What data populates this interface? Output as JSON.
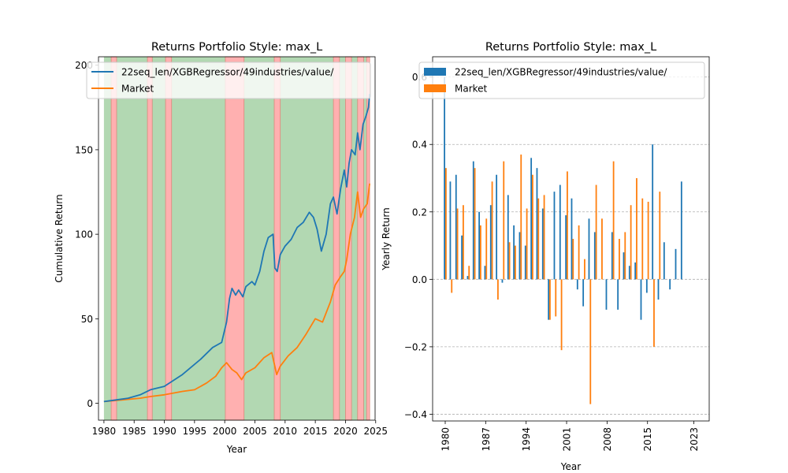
{
  "colors": {
    "strategy": "#1f77b4",
    "market": "#ff7f0e",
    "bull_regime": "#b2d8b2",
    "bear_regime": "#ffb0b0",
    "bear_edge": "#d88a7a",
    "grid": "#b0b0b0"
  },
  "chart_data": [
    {
      "type": "line",
      "title": "Returns Portfolio Style: max_L",
      "xlabel": "Year",
      "ylabel": "Cumulative Return",
      "xlim": [
        1979.1,
        2024.9
      ],
      "ylim": [
        -10,
        205
      ],
      "x_ticks": [
        1980,
        1985,
        1990,
        1995,
        2000,
        2005,
        2010,
        2015,
        2020,
        2025
      ],
      "y_ticks": [
        0,
        50,
        100,
        150,
        200
      ],
      "legend": {
        "placement": "top",
        "entries": [
          "22seq_len/XGBRegressor/49industries/value/",
          "Market"
        ]
      },
      "regime_shading": {
        "range": [
          1980.0,
          2024.0
        ],
        "bear_periods": [
          [
            1981.2,
            1982.1
          ],
          [
            1987.2,
            1988.0
          ],
          [
            1990.2,
            1991.2
          ],
          [
            2000.1,
            2003.2
          ],
          [
            2008.2,
            2009.2
          ],
          [
            2018.0,
            2019.0
          ],
          [
            2020.0,
            2021.0
          ],
          [
            2022.0,
            2023.0
          ],
          [
            2023.5,
            2024.0
          ]
        ]
      },
      "series": [
        {
          "name": "22seq_len/XGBRegressor/49industries/value/",
          "x": [
            1980,
            1982,
            1984,
            1986,
            1987.7,
            1990,
            1993,
            1996,
            1998,
            1999.5,
            2000.3,
            2000.8,
            2001.2,
            2001.8,
            2002.3,
            2003.0,
            2003.5,
            2004.5,
            2005,
            2005.8,
            2006.5,
            2007.2,
            2008.0,
            2008.3,
            2008.7,
            2009.2,
            2010,
            2011,
            2012,
            2013,
            2014,
            2014.7,
            2015.3,
            2016.0,
            2016.8,
            2017.5,
            2018.0,
            2018.6,
            2019.2,
            2019.8,
            2020.2,
            2020.6,
            2021.0,
            2021.6,
            2022.0,
            2022.4,
            2022.9,
            2023.4,
            2023.8,
            2024.0
          ],
          "values": [
            1,
            2,
            3,
            5,
            8,
            10,
            17,
            26,
            33,
            36,
            48,
            62,
            68,
            64,
            67,
            63,
            69,
            72,
            70,
            78,
            90,
            98,
            100,
            80,
            78,
            88,
            93,
            97,
            104,
            107,
            113,
            110,
            103,
            90,
            100,
            118,
            122,
            112,
            127,
            138,
            128,
            142,
            150,
            147,
            160,
            150,
            165,
            170,
            175,
            183
          ]
        },
        {
          "name": "Market",
          "x": [
            1980,
            1983,
            1986,
            1987.7,
            1990,
            1993,
            1995,
            1997,
            1998.5,
            1999.5,
            2000.3,
            2001.2,
            2002.0,
            2002.8,
            2003.5,
            2005.0,
            2006.5,
            2007.8,
            2008.6,
            2009.2,
            2010.5,
            2012,
            2013.5,
            2015,
            2016.2,
            2017.5,
            2018.3,
            2019.2,
            2019.8,
            2020.2,
            2020.8,
            2021.5,
            2022.0,
            2022.5,
            2023.0,
            2023.6,
            2024.0
          ],
          "values": [
            1,
            2,
            3,
            4,
            5,
            7,
            8,
            12,
            16,
            21,
            24,
            20,
            18,
            14,
            18,
            21,
            27,
            30,
            17,
            22,
            28,
            33,
            41,
            50,
            48,
            60,
            70,
            75,
            78,
            85,
            100,
            110,
            125,
            110,
            115,
            118,
            130
          ]
        }
      ]
    },
    {
      "type": "bar",
      "title": "Returns Portfolio Style: max_L",
      "xlabel": "Year",
      "ylabel": "Yearly Return",
      "ylim": [
        -0.42,
        0.66
      ],
      "y_ticks": [
        -0.4,
        -0.2,
        0.0,
        0.2,
        0.4,
        0.6
      ],
      "y_tick_labels": [
        "−0.4",
        "−0.2",
        "0.0",
        "0.2",
        "0.4",
        "0.6"
      ],
      "grid": "horizontal-dashed",
      "legend": {
        "placement": "top",
        "entries": [
          "22seq_len/XGBRegressor/49industries/value/",
          "Market"
        ]
      },
      "x_tick_labels": [
        "1980",
        "1987",
        "1994",
        "2001",
        "2008",
        "2015",
        "2023"
      ],
      "categories": [
        1980,
        1981,
        1982,
        1983,
        1984,
        1985,
        1986,
        1987,
        1988,
        1989,
        1990,
        1991,
        1992,
        1993,
        1994,
        1995,
        1996,
        1997,
        1998,
        1999,
        2000,
        2001,
        2002,
        2003,
        2004,
        2005,
        2006,
        2007,
        2008,
        2009,
        2010,
        2011,
        2012,
        2013,
        2014,
        2015,
        2016,
        2017,
        2018,
        2019,
        2020,
        2021,
        2022,
        2023
      ],
      "series": [
        {
          "name": "22seq_len/XGBRegressor/49industries/value/",
          "values": [
            0.6,
            0.29,
            0.31,
            0.13,
            0.01,
            0.35,
            0.2,
            0.04,
            0.22,
            0.31,
            -0.01,
            0.25,
            0.16,
            0.14,
            0.1,
            0.36,
            0.33,
            0.21,
            -0.12,
            0.26,
            0.28,
            0.19,
            0.24,
            -0.03,
            -0.08,
            0.18,
            0.14,
            0.0,
            -0.09,
            0.14,
            -0.09,
            0.08,
            0.04,
            0.05,
            -0.12,
            -0.04,
            0.4,
            -0.06,
            0.11,
            -0.03,
            0.09,
            0.29,
            0.0,
            0.0
          ]
        },
        {
          "name": "Market",
          "values": [
            0.33,
            -0.04,
            0.21,
            0.22,
            0.04,
            0.33,
            0.16,
            0.18,
            0.29,
            -0.06,
            0.35,
            0.11,
            0.1,
            0.37,
            0.21,
            0.31,
            0.24,
            0.25,
            -0.12,
            -0.11,
            -0.21,
            0.32,
            0.12,
            0.16,
            0.06,
            -0.37,
            0.28,
            0.18,
            0.0,
            0.35,
            0.12,
            0.14,
            0.22,
            0.3,
            0.24,
            0.23,
            -0.2,
            0.26,
            0.0,
            0.0,
            0.0,
            0.0,
            0.0,
            0.0
          ]
        }
      ]
    }
  ]
}
